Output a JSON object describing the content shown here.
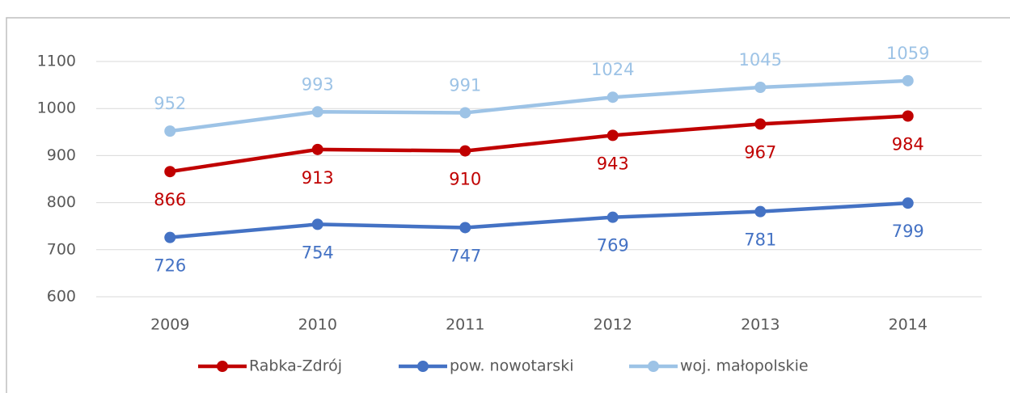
{
  "chart_data": {
    "type": "line",
    "categories": [
      "2009",
      "2010",
      "2011",
      "2012",
      "2013",
      "2014"
    ],
    "series": [
      {
        "name": "Rabka-Zdrój",
        "color": "#c00000",
        "label_position": "below",
        "values": [
          866,
          913,
          910,
          943,
          967,
          984
        ]
      },
      {
        "name": "pow. nowotarski",
        "color": "#4472c4",
        "label_position": "below",
        "values": [
          726,
          754,
          747,
          769,
          781,
          799
        ]
      },
      {
        "name": "woj. małopolskie",
        "color": "#9dc3e6",
        "label_position": "above",
        "values": [
          952,
          993,
          991,
          1024,
          1045,
          1059
        ]
      }
    ],
    "ylim": [
      600,
      1100
    ],
    "yticks": [
      600,
      700,
      800,
      900,
      1000,
      1100
    ],
    "grid": true,
    "legend": "bottom"
  }
}
